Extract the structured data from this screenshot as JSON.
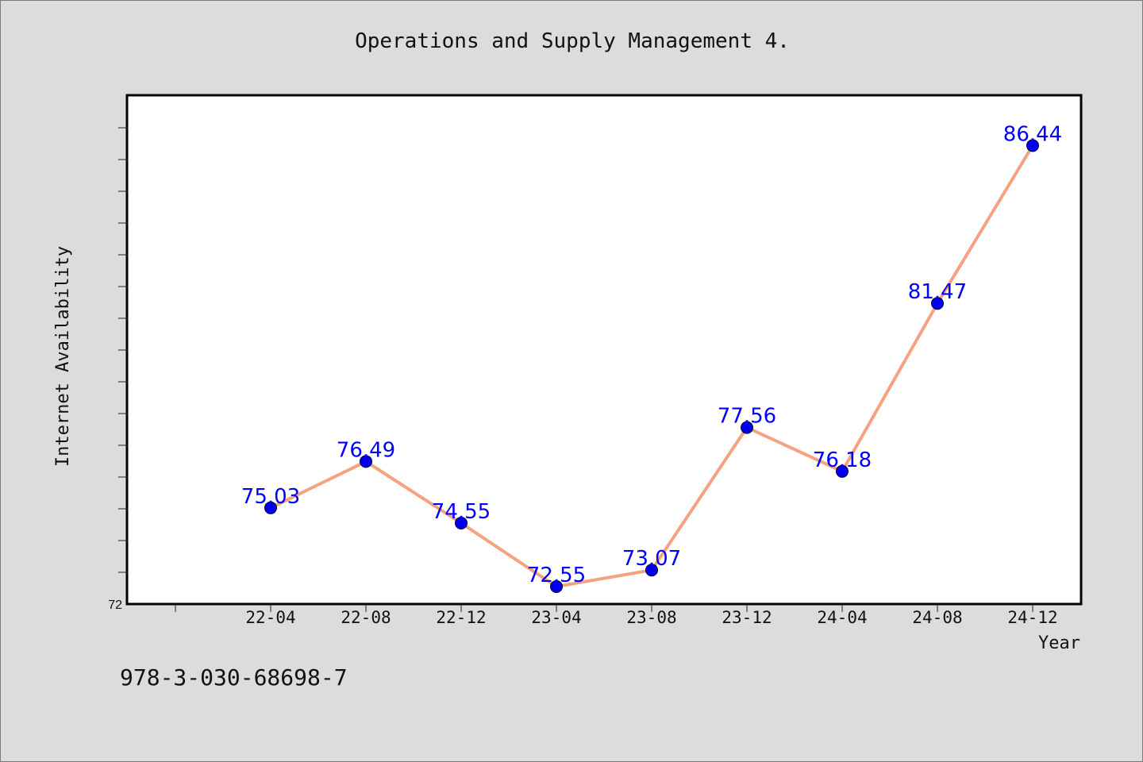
{
  "title": "Operations and Supply Management 4.",
  "footer_text": "978-3-030-68698-7",
  "colors": {
    "line": "#f4a27f",
    "marker": "#0000ee",
    "label": "#0000ff",
    "plot_bg": "#ffffff",
    "page_bg": "#dcdcdc"
  },
  "chart_data": {
    "type": "line",
    "xlabel": "Year",
    "ylabel": "Internet Availability",
    "ylim": [
      72,
      88
    ],
    "ytick_labels": [
      "72"
    ],
    "categories": [
      "22-04",
      "22-08",
      "22-12",
      "23-04",
      "23-08",
      "23-12",
      "24-04",
      "24-08",
      "24-12"
    ],
    "series": [
      {
        "values": [
          75.03,
          76.49,
          74.55,
          72.55,
          73.07,
          77.56,
          76.18,
          81.47,
          86.44
        ]
      }
    ],
    "data_labels": [
      "75.03",
      "76.49",
      "74.55",
      "72.55",
      "73.07",
      "77.56",
      "76.18",
      "81.47",
      "86.44"
    ],
    "grid": false,
    "legend": "none"
  }
}
